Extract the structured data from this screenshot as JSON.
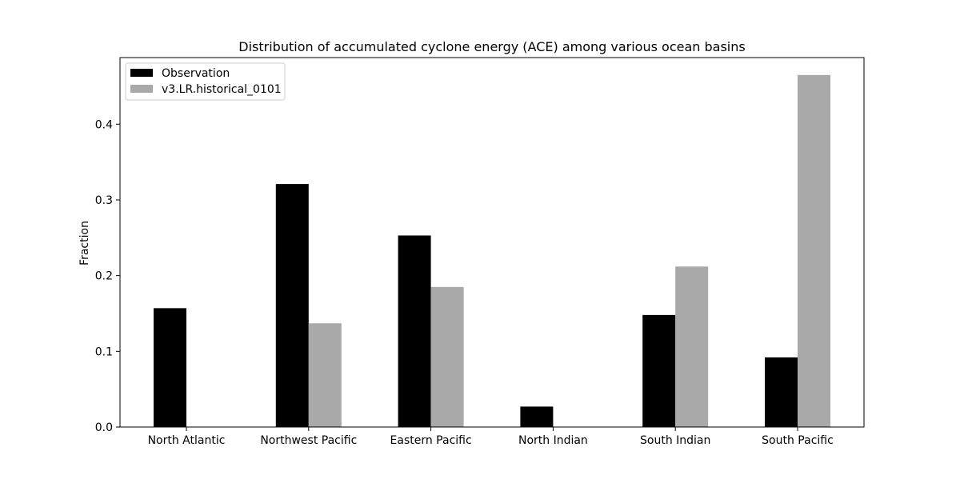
{
  "chart_data": {
    "type": "bar",
    "title": "Distribution of accumulated cyclone energy (ACE) among various ocean basins",
    "xlabel": "",
    "ylabel": "Fraction",
    "categories": [
      "North Atlantic",
      "Northwest Pacific",
      "Eastern Pacific",
      "North Indian",
      "South Indian",
      "South Pacific"
    ],
    "series": [
      {
        "name": "Observation",
        "color": "#000000",
        "values": [
          0.157,
          0.321,
          0.253,
          0.027,
          0.148,
          0.092
        ]
      },
      {
        "name": "v3.LR.historical_0101",
        "color": "#a9a9a9",
        "values": [
          0.0,
          0.137,
          0.185,
          0.0,
          0.212,
          0.465
        ]
      }
    ],
    "ylim": [
      0,
      0.488
    ],
    "yticks": [
      0.0,
      0.1,
      0.2,
      0.3,
      0.4
    ],
    "ytick_labels": [
      "0.0",
      "0.1",
      "0.2",
      "0.3",
      "0.4"
    ],
    "grid": false,
    "legend_position": "upper-left"
  }
}
